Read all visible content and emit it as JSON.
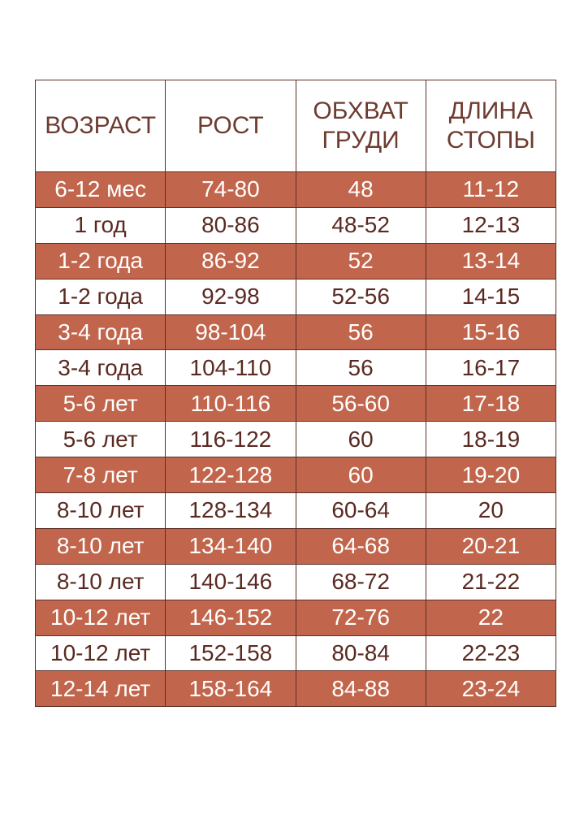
{
  "table": {
    "header": [
      "ВОЗРАСТ",
      "РОСТ",
      "ОБХВАТ ГРУДИ",
      "ДЛИНА СТОПЫ"
    ],
    "rows": [
      [
        "6-12 мес",
        "74-80",
        "48",
        "11-12"
      ],
      [
        "1 год",
        "80-86",
        "48-52",
        "12-13"
      ],
      [
        "1-2 года",
        "86-92",
        "52",
        "13-14"
      ],
      [
        "1-2 года",
        "92-98",
        "52-56",
        "14-15"
      ],
      [
        "3-4 года",
        "98-104",
        "56",
        "15-16"
      ],
      [
        "3-4 года",
        "104-110",
        "56",
        "16-17"
      ],
      [
        "5-6 лет",
        "110-116",
        "56-60",
        "17-18"
      ],
      [
        "5-6 лет",
        "116-122",
        "60",
        "18-19"
      ],
      [
        "7-8 лет",
        "122-128",
        "60",
        "19-20"
      ],
      [
        "8-10 лет",
        "128-134",
        "60-64",
        "20"
      ],
      [
        "8-10 лет",
        "134-140",
        "64-68",
        "20-21"
      ],
      [
        "8-10 лет",
        "140-146",
        "68-72",
        "21-22"
      ],
      [
        "10-12 лет",
        "146-152",
        "72-76",
        "22"
      ],
      [
        "10-12 лет",
        "152-158",
        "80-84",
        "22-23"
      ],
      [
        "12-14 лет",
        "158-164",
        "84-88",
        "23-24"
      ]
    ]
  }
}
